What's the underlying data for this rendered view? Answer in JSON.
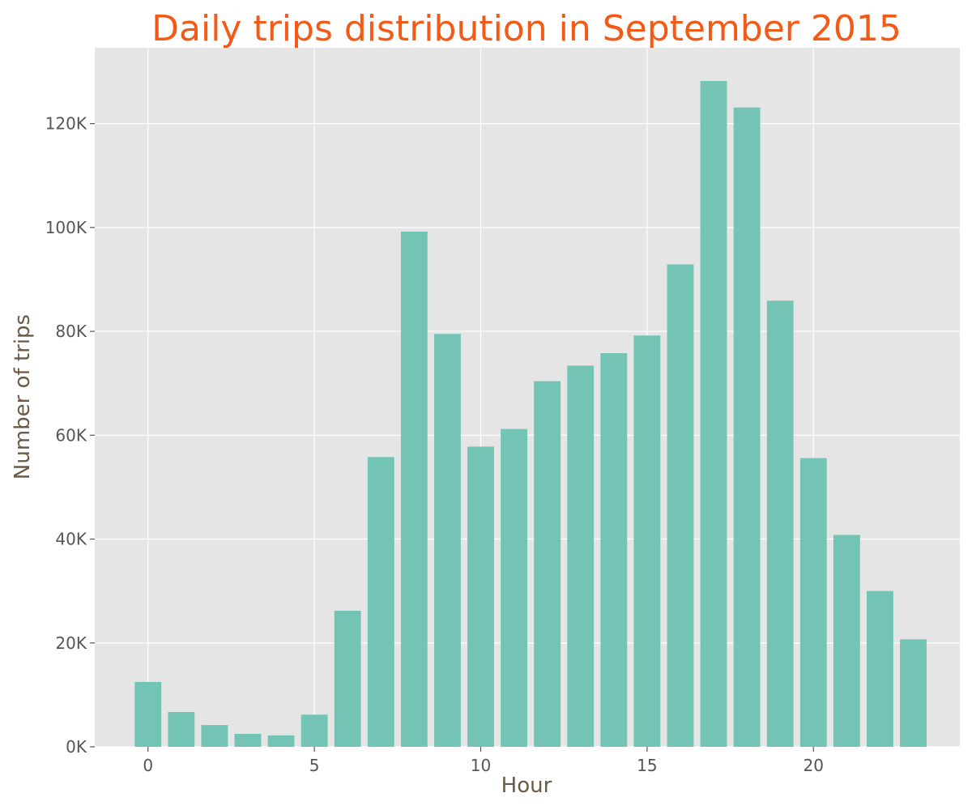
{
  "chart_data": {
    "type": "bar",
    "title": "Daily trips distribution in September 2015",
    "xlabel": "Hour",
    "ylabel": "Number of trips",
    "x": [
      0,
      1,
      2,
      3,
      4,
      5,
      6,
      7,
      8,
      9,
      10,
      11,
      12,
      13,
      14,
      15,
      16,
      17,
      18,
      19,
      20,
      21,
      22,
      23
    ],
    "values": [
      12500,
      6700,
      4200,
      2500,
      2200,
      6200,
      26200,
      55800,
      99200,
      79500,
      57800,
      61200,
      70400,
      73400,
      75800,
      79200,
      92900,
      128200,
      123100,
      85900,
      55600,
      40800,
      30000,
      20700
    ],
    "x_ticks": [
      0,
      5,
      10,
      15,
      20
    ],
    "x_tick_labels": [
      "0",
      "5",
      "10",
      "15",
      "20"
    ],
    "y_ticks": [
      0,
      20000,
      40000,
      60000,
      80000,
      100000,
      120000
    ],
    "y_tick_labels": [
      "0K",
      "20K",
      "40K",
      "60K",
      "80K",
      "100K",
      "120K"
    ],
    "xlim": [
      -1.6,
      24.4
    ],
    "ylim": [
      0,
      134600
    ],
    "grid": true,
    "legend": "none",
    "colors": {
      "bar": "#74c4b5",
      "background": "#e5e5e5",
      "grid": "#ffffff",
      "title": "#f45a17",
      "axis_label": "#6b5a45",
      "tick_label": "#555555"
    }
  }
}
